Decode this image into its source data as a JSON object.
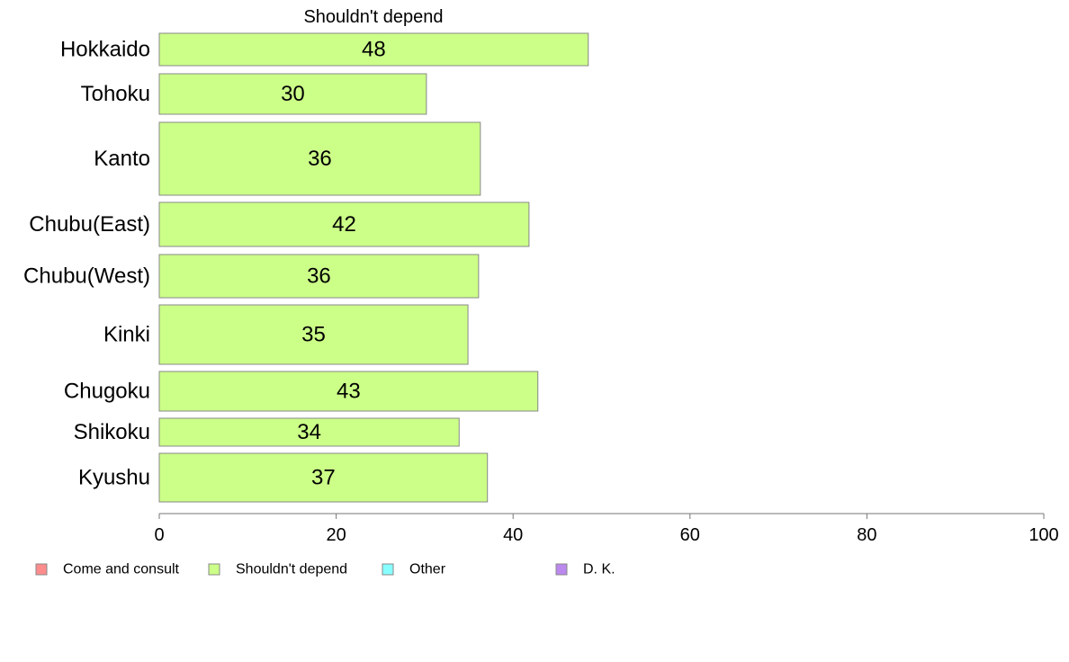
{
  "chart_data": {
    "type": "bar",
    "orientation": "horizontal",
    "title": "Shouldn't depend",
    "categories": [
      "Hokkaido",
      "Tohoku",
      "Kanto",
      "Chubu(East)",
      "Chubu(West)",
      "Kinki",
      "Chugoku",
      "Shikoku",
      "Kyushu"
    ],
    "series": [
      {
        "name": "Shouldn't depend",
        "color": "#ccff88",
        "values": [
          48.5,
          30.2,
          36.3,
          41.8,
          36.1,
          34.9,
          42.8,
          33.9,
          37.1
        ]
      }
    ],
    "data_labels": [
      "48",
      "30",
      "36",
      "42",
      "36",
      "35",
      "43",
      "34",
      "37"
    ],
    "xlim": [
      0,
      100
    ],
    "xticks": [
      "0",
      "20",
      "40",
      "60",
      "80",
      "100"
    ],
    "grid": false,
    "legend": {
      "placement": "bottom-left",
      "entries": [
        {
          "label": "Come and consult",
          "color": "#ff8c8c"
        },
        {
          "label": "Shouldn't depend",
          "color": "#ccff88"
        },
        {
          "label": "Other",
          "color": "#88ffff"
        },
        {
          "label": "D. K.",
          "color": "#bb88ee"
        }
      ]
    }
  }
}
